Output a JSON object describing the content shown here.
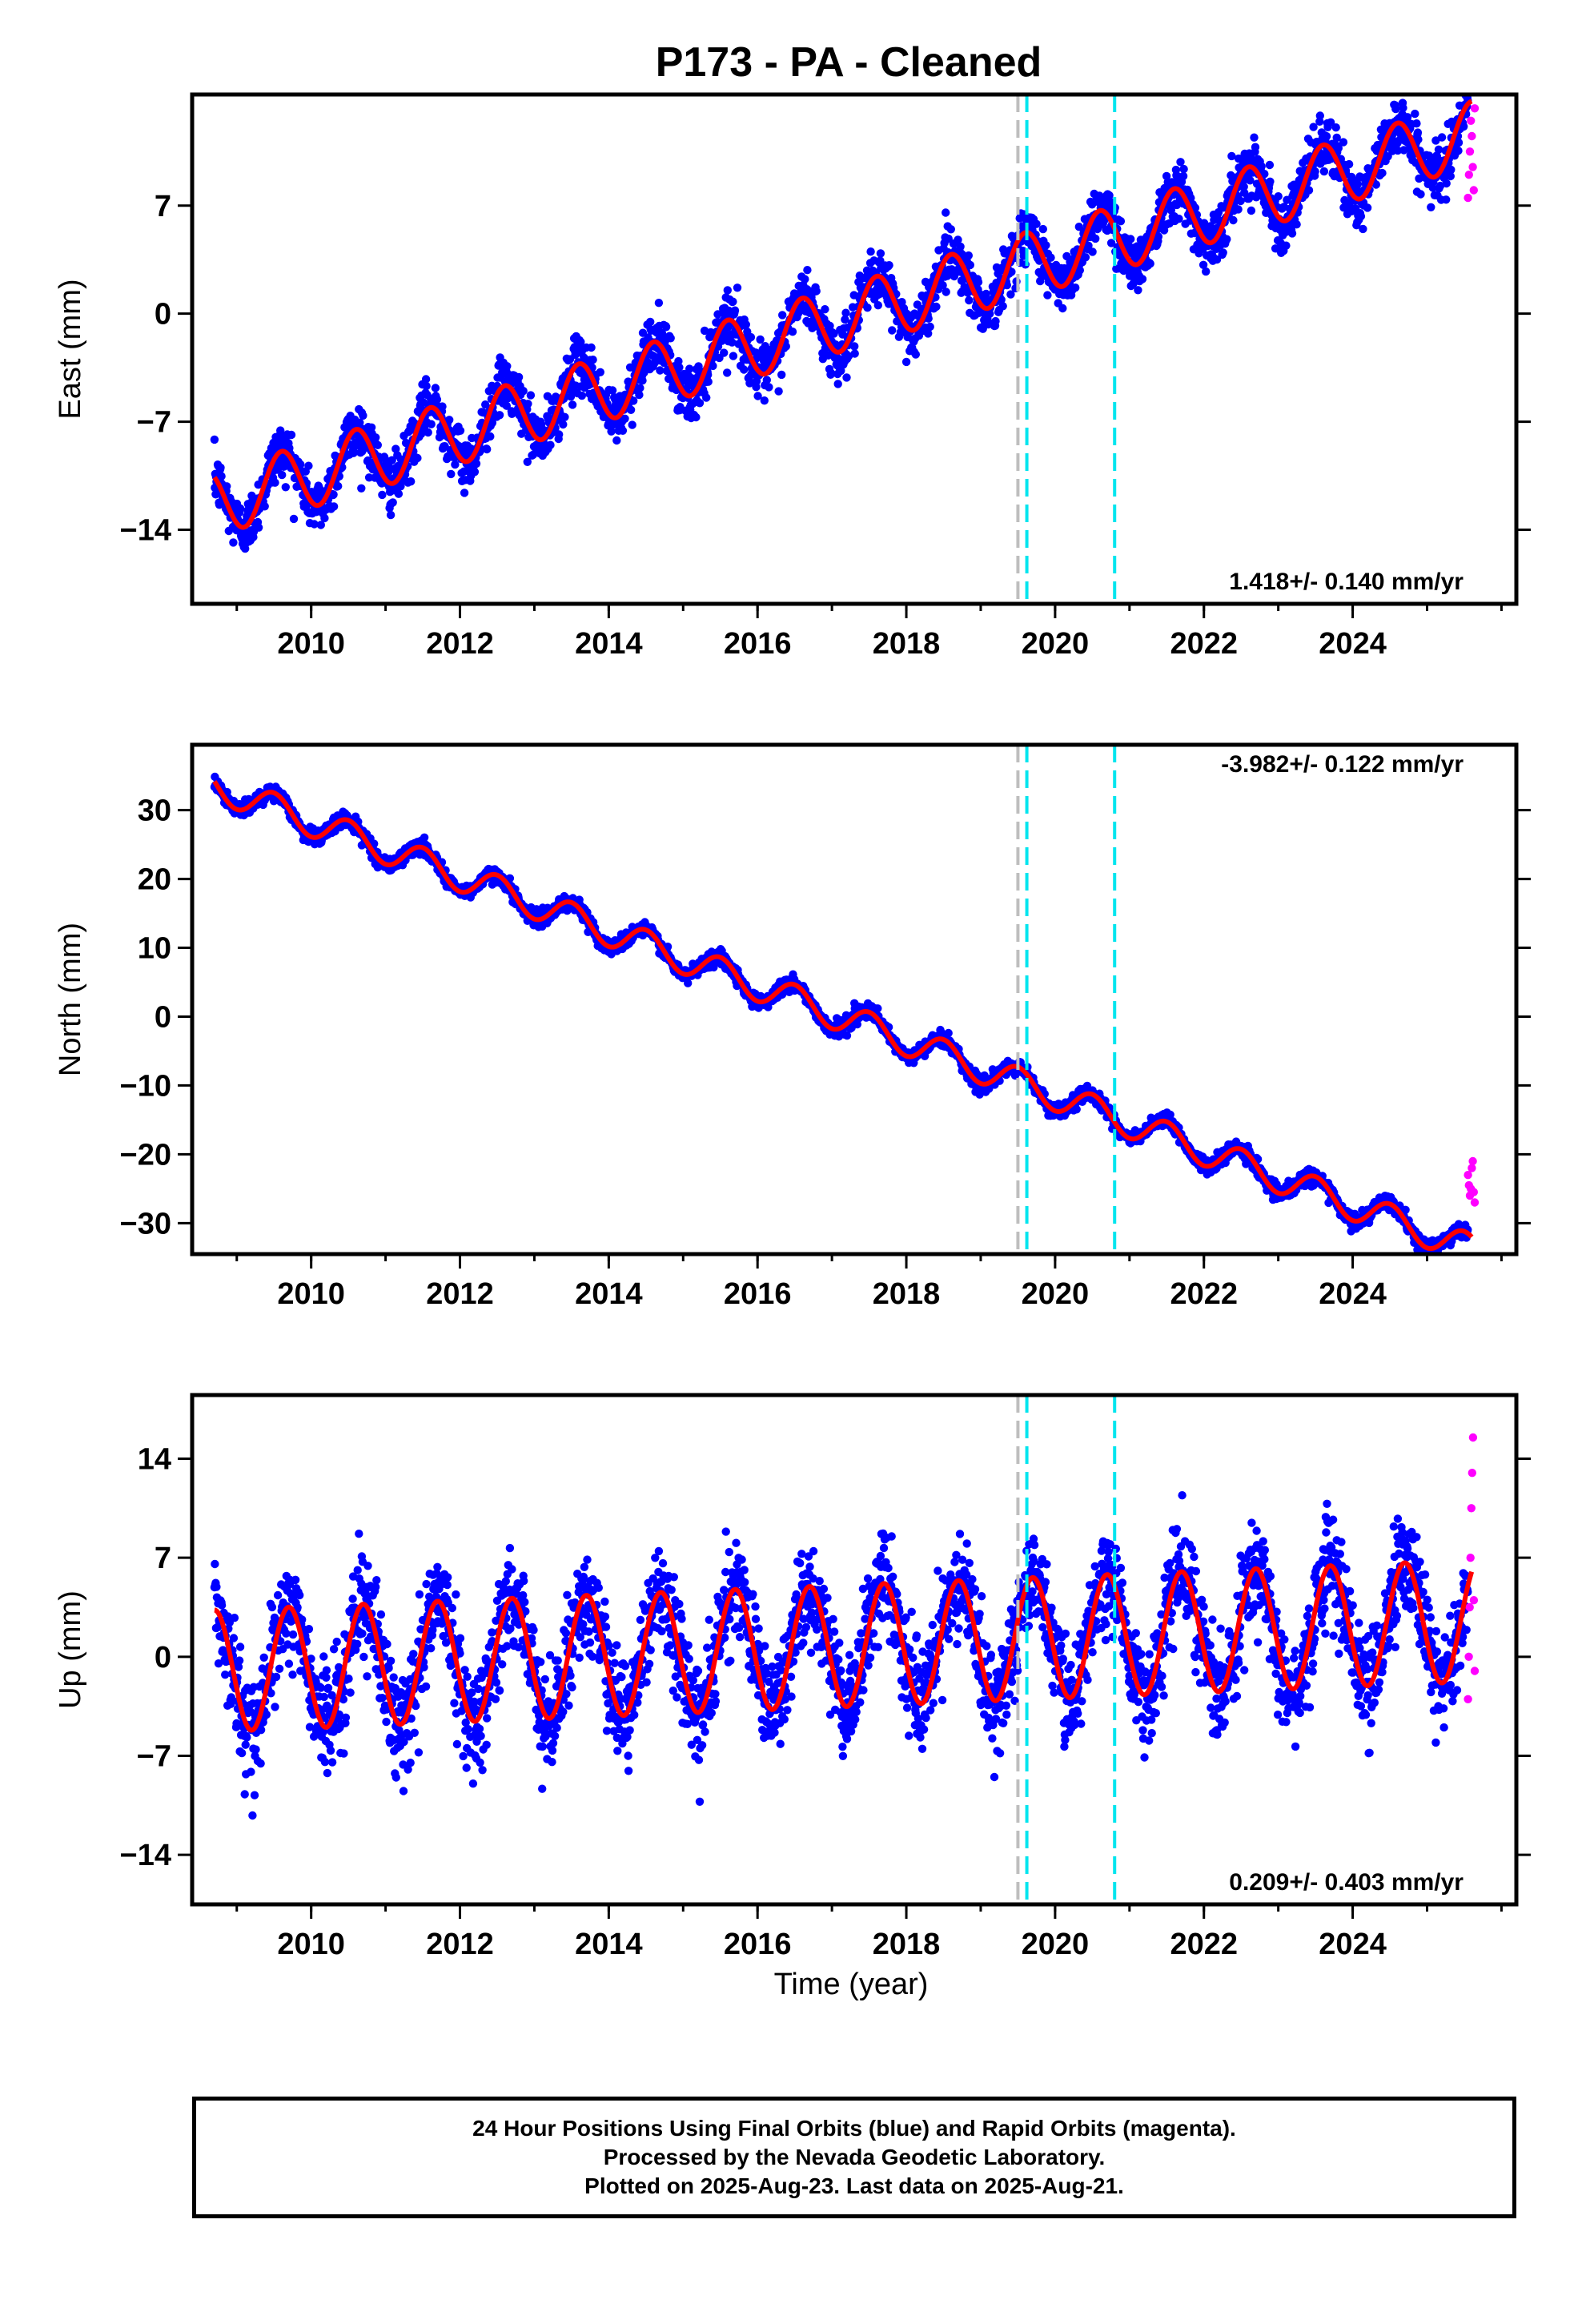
{
  "chart_title": "P173  - PA - Cleaned",
  "xlabel": "Time (year)",
  "colors": {
    "final_orbits": "#0000ff",
    "rapid_orbits": "#ff00ff",
    "model_fit": "#ff0000",
    "equipment_change": "#00e5ee",
    "earthquake": "#bebebe"
  },
  "caption": {
    "line1": "24 Hour Positions Using Final Orbits (blue) and Rapid Orbits (magenta).",
    "line2": "Processed by the Nevada Geodetic Laboratory.",
    "line3": "Plotted on 2025-Aug-23. Last data on 2025-Aug-21."
  },
  "chart_data": [
    {
      "type": "scatter",
      "ylabel": "East (mm)",
      "rate_label": "1.418+/- 0.140 mm/yr",
      "rate_position": "bottom-right",
      "xlim": [
        2008.4,
        2026.2
      ],
      "ylim": [
        -18.8,
        14.2
      ],
      "xticks": [
        2010,
        2012,
        2014,
        2016,
        2018,
        2020,
        2022,
        2024
      ],
      "xtick_labels": [
        "2010",
        "2012",
        "2014",
        "2016",
        "2018",
        "2020",
        "2022",
        "2024"
      ],
      "yticks": [
        -14,
        -7,
        0,
        7
      ],
      "ytick_labels": [
        "−14",
        "−7",
        "0",
        "7"
      ],
      "series_final": {
        "start": 2008.7,
        "end": 2025.55,
        "rate": 1.418,
        "offset_2008_7": -12.3,
        "seasonal_amplitude": 2.1,
        "seasonal_phase_peak": 0.6,
        "noise": 1.6
      },
      "series_rapid": {
        "start": 2025.55,
        "end": 2025.64,
        "values": [
          7.5,
          9.0,
          10.5,
          12.5,
          11.5,
          9.5,
          8.0,
          13.3
        ]
      },
      "vlines": [
        {
          "x": 2019.5,
          "kind": "earthquake"
        },
        {
          "x": 2019.62,
          "kind": "equipment_change"
        },
        {
          "x": 2020.8,
          "kind": "equipment_change"
        }
      ]
    },
    {
      "type": "scatter",
      "ylabel": "North (mm)",
      "rate_label": "-3.982+/- 0.122 mm/yr",
      "rate_position": "top-right",
      "xlim": [
        2008.4,
        2026.2
      ],
      "ylim": [
        -34.5,
        39.5
      ],
      "xticks": [
        2010,
        2012,
        2014,
        2016,
        2018,
        2020,
        2022,
        2024
      ],
      "xtick_labels": [
        "2010",
        "2012",
        "2014",
        "2016",
        "2018",
        "2020",
        "2022",
        "2024"
      ],
      "yticks": [
        -30,
        -20,
        -10,
        0,
        10,
        20,
        30
      ],
      "ytick_labels": [
        "−30",
        "−20",
        "−10",
        "0",
        "10",
        "20",
        "30"
      ],
      "series_final": {
        "start": 2008.7,
        "end": 2025.55,
        "rate": -3.982,
        "offset_2008_7": 33.5,
        "seasonal_amplitude": 2.2,
        "seasonal_phase_peak": 0.5,
        "noise": 1.0
      },
      "series_rapid": {
        "start": 2025.55,
        "end": 2025.64,
        "values": [
          -23.0,
          -24.5,
          -26.0,
          -25.0,
          -22.0,
          -21.0,
          -25.5,
          -27.0
        ]
      },
      "vlines": [
        {
          "x": 2019.5,
          "kind": "earthquake"
        },
        {
          "x": 2019.62,
          "kind": "equipment_change"
        },
        {
          "x": 2020.8,
          "kind": "equipment_change"
        }
      ]
    },
    {
      "type": "scatter",
      "ylabel": "Up (mm)",
      "rate_label": "0.209+/- 0.403 mm/yr",
      "rate_position": "bottom-right",
      "xlim": [
        2008.4,
        2026.2
      ],
      "ylim": [
        -17.5,
        18.5
      ],
      "xticks": [
        2010,
        2012,
        2014,
        2016,
        2018,
        2020,
        2022,
        2024
      ],
      "xtick_labels": [
        "2010",
        "2012",
        "2014",
        "2016",
        "2018",
        "2020",
        "2022",
        "2024"
      ],
      "yticks": [
        -14,
        -7,
        0,
        7,
        14
      ],
      "ytick_labels": [
        "−14",
        "−7",
        "0",
        "7",
        "14"
      ],
      "series_final": {
        "start": 2008.7,
        "end": 2025.55,
        "rate": 0.209,
        "offset_2008_7": -1.0,
        "seasonal_amplitude": 4.3,
        "seasonal_phase_peak": 0.7,
        "noise": 3.2
      },
      "series_rapid": {
        "start": 2025.55,
        "end": 2025.64,
        "values": [
          -3.0,
          0.0,
          3.5,
          7.0,
          10.5,
          13.0,
          15.5,
          4.0,
          -1.0
        ]
      },
      "vlines": [
        {
          "x": 2019.5,
          "kind": "earthquake"
        },
        {
          "x": 2019.62,
          "kind": "equipment_change"
        },
        {
          "x": 2020.8,
          "kind": "equipment_change"
        }
      ]
    }
  ]
}
